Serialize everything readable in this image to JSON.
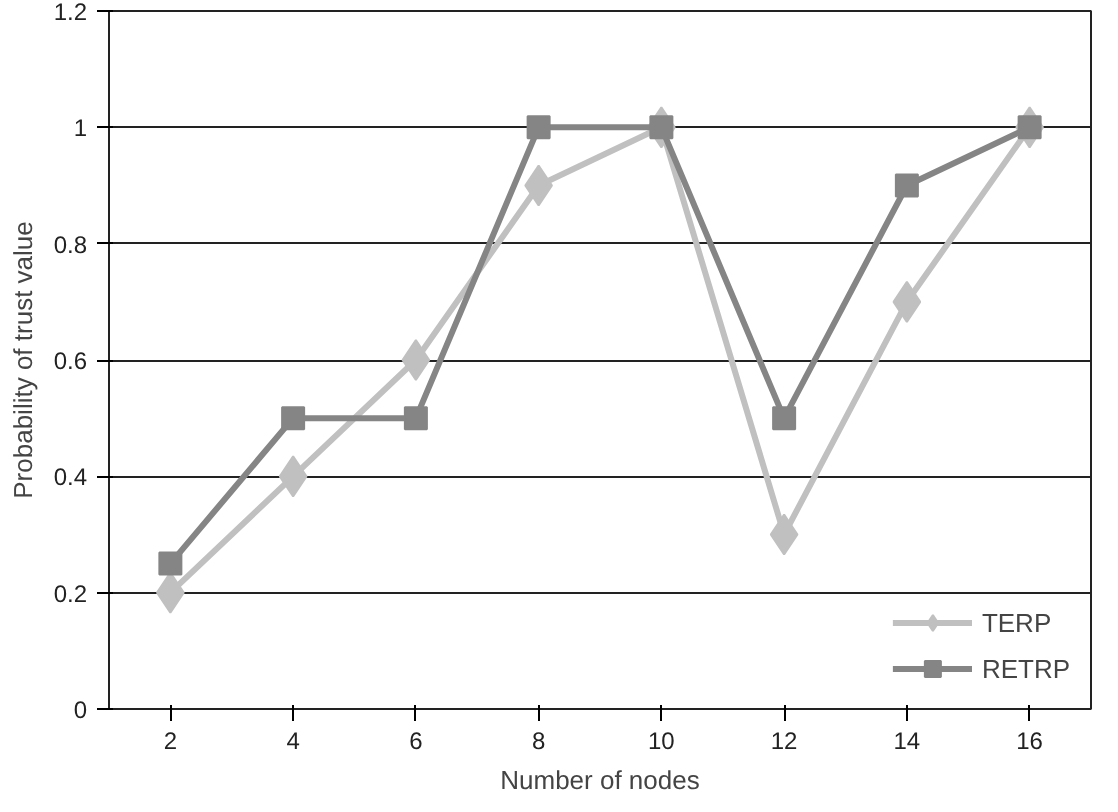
{
  "chart_data": {
    "type": "line",
    "xlabel": "Number of nodes",
    "ylabel": "Probability of trust value",
    "x": [
      2,
      4,
      6,
      8,
      10,
      12,
      14,
      16
    ],
    "xlim": [
      1,
      17
    ],
    "xticks": [
      2,
      4,
      6,
      8,
      10,
      12,
      14,
      16
    ],
    "ylim": [
      0,
      1.2
    ],
    "yticks": [
      0,
      {
        "value": 0.2,
        "label": "0.2"
      },
      {
        "value": 0.4,
        "label": "0.4"
      },
      {
        "value": 0.6,
        "label": "0.6"
      },
      {
        "value": 0.8,
        "label": "0.8"
      },
      1,
      {
        "value": 1.2,
        "label": "1.2"
      }
    ],
    "grid": "y",
    "legend": "bottom right",
    "series": [
      {
        "name": "TERP",
        "color": "#c0c0c0",
        "marker": "diamond",
        "values": [
          0.2,
          0.4,
          0.6,
          0.9,
          1,
          0.3,
          0.7,
          1
        ]
      },
      {
        "name": "RETRP",
        "color": "#858585",
        "marker": "square",
        "values": [
          0.25,
          0.5,
          0.5,
          1,
          1,
          0.5,
          0.9,
          1
        ]
      }
    ]
  }
}
